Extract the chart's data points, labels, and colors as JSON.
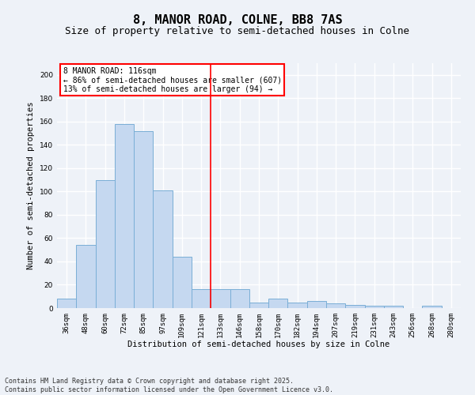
{
  "title": "8, MANOR ROAD, COLNE, BB8 7AS",
  "subtitle": "Size of property relative to semi-detached houses in Colne",
  "xlabel": "Distribution of semi-detached houses by size in Colne",
  "ylabel": "Number of semi-detached properties",
  "categories": [
    "36sqm",
    "48sqm",
    "60sqm",
    "72sqm",
    "85sqm",
    "97sqm",
    "109sqm",
    "121sqm",
    "133sqm",
    "146sqm",
    "158sqm",
    "170sqm",
    "182sqm",
    "194sqm",
    "207sqm",
    "219sqm",
    "231sqm",
    "243sqm",
    "256sqm",
    "268sqm",
    "280sqm"
  ],
  "values": [
    8,
    54,
    110,
    158,
    152,
    101,
    44,
    16,
    16,
    16,
    5,
    8,
    5,
    6,
    4,
    3,
    2,
    2,
    0,
    2,
    0
  ],
  "bar_color": "#c5d8f0",
  "bar_edge_color": "#7aaed6",
  "vline_x": 7.5,
  "vline_color": "red",
  "annotation_title": "8 MANOR ROAD: 116sqm",
  "annotation_line1": "← 86% of semi-detached houses are smaller (607)",
  "annotation_line2": "13% of semi-detached houses are larger (94) →",
  "ylim": [
    0,
    210
  ],
  "yticks": [
    0,
    20,
    40,
    60,
    80,
    100,
    120,
    140,
    160,
    180,
    200
  ],
  "footer_line1": "Contains HM Land Registry data © Crown copyright and database right 2025.",
  "footer_line2": "Contains public sector information licensed under the Open Government Licence v3.0.",
  "bg_color": "#eef2f8",
  "plot_bg_color": "#eef2f8",
  "grid_color": "#ffffff",
  "title_fontsize": 11,
  "subtitle_fontsize": 9,
  "axis_label_fontsize": 7.5,
  "tick_fontsize": 6.5,
  "footer_fontsize": 6,
  "annotation_fontsize": 7,
  "ylabel_fontsize": 7.5
}
